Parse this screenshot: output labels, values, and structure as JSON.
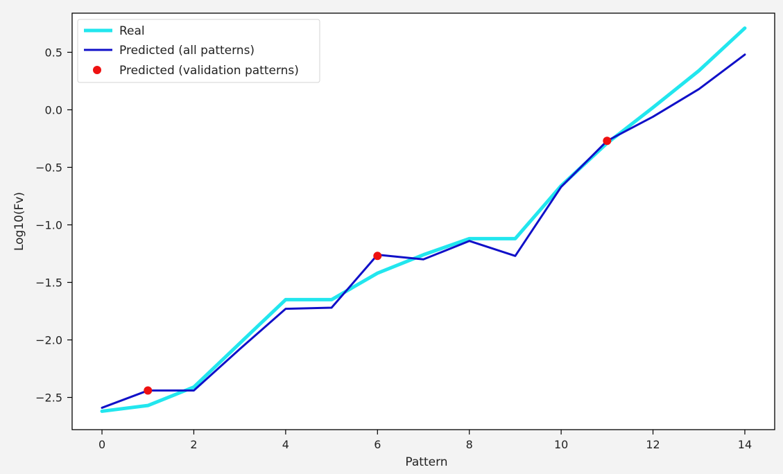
{
  "chart_data": {
    "type": "line",
    "title": "",
    "xlabel": "Pattern",
    "ylabel": "Log10(Fv)",
    "xlim": [
      -0.65,
      14.65
    ],
    "ylim": [
      -2.78,
      0.84
    ],
    "xticks": [
      0,
      2,
      4,
      6,
      8,
      10,
      12,
      14
    ],
    "yticks": [
      -2.5,
      -2.0,
      -1.5,
      -1.0,
      -0.5,
      0.0,
      0.5
    ],
    "xtick_labels": [
      "0",
      "2",
      "4",
      "6",
      "8",
      "10",
      "12",
      "14"
    ],
    "ytick_labels": [
      "−2.5",
      "−2.0",
      "−1.5",
      "−1.0",
      "−0.5",
      "0.0",
      "0.5"
    ],
    "grid": false,
    "legend_position": "upper left",
    "x": [
      0,
      1,
      2,
      3,
      4,
      5,
      6,
      7,
      8,
      9,
      10,
      11,
      12,
      13,
      14
    ],
    "series": [
      {
        "name": "Real",
        "kind": "line",
        "color": "#22e6ee",
        "values": [
          -2.62,
          -2.57,
          -2.41,
          -2.03,
          -1.65,
          -1.65,
          -1.42,
          -1.26,
          -1.12,
          -1.12,
          -0.66,
          -0.29,
          0.02,
          0.34,
          0.71
        ]
      },
      {
        "name": "Predicted (all patterns)",
        "kind": "line",
        "color": "#1010c8",
        "values": [
          -2.59,
          -2.44,
          -2.44,
          -2.08,
          -1.73,
          -1.72,
          -1.26,
          -1.3,
          -1.14,
          -1.27,
          -0.67,
          -0.27,
          -0.06,
          0.18,
          0.48
        ]
      },
      {
        "name": "Predicted (validation patterns)",
        "kind": "scatter",
        "color": "#ee1111",
        "points": [
          {
            "x": 1,
            "y": -2.44
          },
          {
            "x": 6,
            "y": -1.27
          },
          {
            "x": 11,
            "y": -0.27
          }
        ]
      }
    ]
  }
}
